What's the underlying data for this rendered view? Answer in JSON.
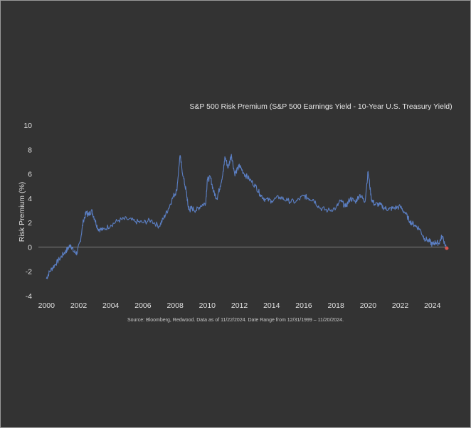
{
  "chart_data": {
    "type": "line",
    "title": "S&P 500 Risk Premium (S&P 500 Earnings Yield - 10-Year U.S. Treasury Yield)",
    "xlabel": "",
    "ylabel": "Risk Premium (%)",
    "xlim": [
      1999.5,
      2024.85
    ],
    "ylim": [
      -4,
      10
    ],
    "x_ticks": [
      "2000",
      "2002",
      "2004",
      "2006",
      "2008",
      "2010",
      "2012",
      "2014",
      "2016",
      "2018",
      "2020",
      "2022",
      "2024"
    ],
    "y_ticks": [
      "10",
      "8",
      "6",
      "4",
      "2",
      "0",
      "-2",
      "-4"
    ],
    "grid": false,
    "zero_line": true,
    "series": [
      {
        "color": "#5b7fc4",
        "x": [
          1999.99,
          2000.2,
          2000.5,
          2000.8,
          2001.1,
          2001.3,
          2001.5,
          2001.7,
          2001.9,
          2002.1,
          2002.3,
          2002.5,
          2002.6,
          2002.8,
          2003.0,
          2003.2,
          2003.5,
          2004.0,
          2004.5,
          2005.0,
          2005.5,
          2006.0,
          2006.5,
          2007.0,
          2007.3,
          2007.6,
          2007.9,
          2008.1,
          2008.3,
          2008.5,
          2008.7,
          2008.8,
          2008.9,
          2009.0,
          2009.3,
          2009.6,
          2009.9,
          2010.0,
          2010.2,
          2010.4,
          2010.6,
          2010.8,
          2011.0,
          2011.1,
          2011.3,
          2011.5,
          2011.7,
          2011.9,
          2012.0,
          2012.3,
          2012.6,
          2013.0,
          2013.3,
          2013.6,
          2014.0,
          2014.5,
          2015.0,
          2015.5,
          2016.0,
          2016.3,
          2016.6,
          2017.0,
          2017.5,
          2018.0,
          2018.3,
          2018.6,
          2018.9,
          2019.2,
          2019.5,
          2019.8,
          2020.0,
          2020.2,
          2020.4,
          2020.7,
          2021.0,
          2021.3,
          2021.6,
          2022.0,
          2022.3,
          2022.6,
          2022.9,
          2023.2,
          2023.5,
          2023.8,
          2024.0,
          2024.2,
          2024.4,
          2024.6,
          2024.89
        ],
        "values": [
          -2.6,
          -2.0,
          -1.5,
          -1.0,
          -0.5,
          -0.2,
          0.2,
          -0.4,
          -0.5,
          0.5,
          2.2,
          2.9,
          2.6,
          3.0,
          2.3,
          1.5,
          1.4,
          1.8,
          2.2,
          2.3,
          2.1,
          2.0,
          2.2,
          1.7,
          2.4,
          3.2,
          4.2,
          4.6,
          7.5,
          5.8,
          4.5,
          3.4,
          3.0,
          3.2,
          3.0,
          3.4,
          3.6,
          5.5,
          5.7,
          4.5,
          4.0,
          5.0,
          6.2,
          7.4,
          6.5,
          7.6,
          6.0,
          6.4,
          6.7,
          6.0,
          5.6,
          5.0,
          4.3,
          3.9,
          3.8,
          4.1,
          3.8,
          3.7,
          4.2,
          4.0,
          3.9,
          3.2,
          3.0,
          3.2,
          3.8,
          3.3,
          4.0,
          3.7,
          4.3,
          3.7,
          6.2,
          4.0,
          3.5,
          3.5,
          3.2,
          3.1,
          3.2,
          3.3,
          2.8,
          2.1,
          1.8,
          1.5,
          0.7,
          0.5,
          0.2,
          0.4,
          0.3,
          0.9,
          -0.1
        ]
      }
    ],
    "last_point_marker_color": "#d9534f"
  },
  "source": "Source: Bloomberg, Redwood. Data as of 11/22/2024. Date Range from 12/31/1999 – 11/20/2024."
}
